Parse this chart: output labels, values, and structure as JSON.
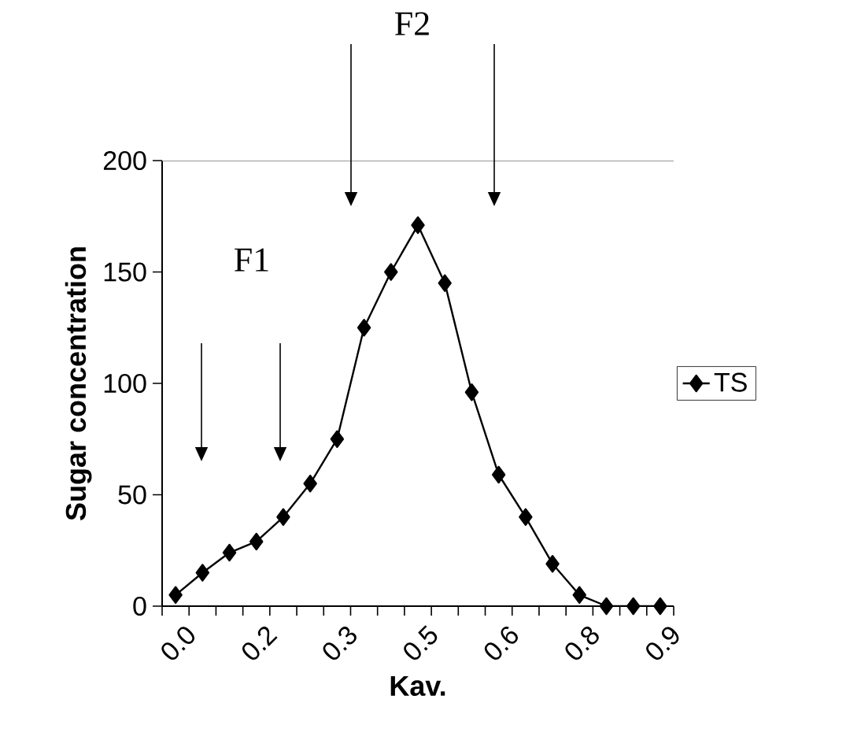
{
  "chart_data": {
    "type": "line",
    "xlabel": "Kav.",
    "ylabel": "Sugar concentration",
    "categories": [
      "0.0",
      null,
      null,
      "0.2",
      null,
      null,
      "0.3",
      null,
      null,
      "0.5",
      null,
      null,
      "0.6",
      null,
      null,
      "0.8",
      null,
      null,
      "0.9"
    ],
    "series": [
      {
        "name": "TS",
        "color": "#000000",
        "values": [
          5,
          15,
          24,
          29,
          40,
          55,
          75,
          125,
          150,
          171,
          145,
          96,
          59,
          40,
          19,
          5,
          0,
          0,
          0
        ]
      }
    ],
    "ylim": [
      0,
      200
    ],
    "yticks": [
      0,
      50,
      100,
      150,
      200
    ],
    "marker": "diamond",
    "line_style": "solid",
    "legend": "right",
    "grid": false,
    "annotations": [
      "F1",
      "F2"
    ]
  }
}
